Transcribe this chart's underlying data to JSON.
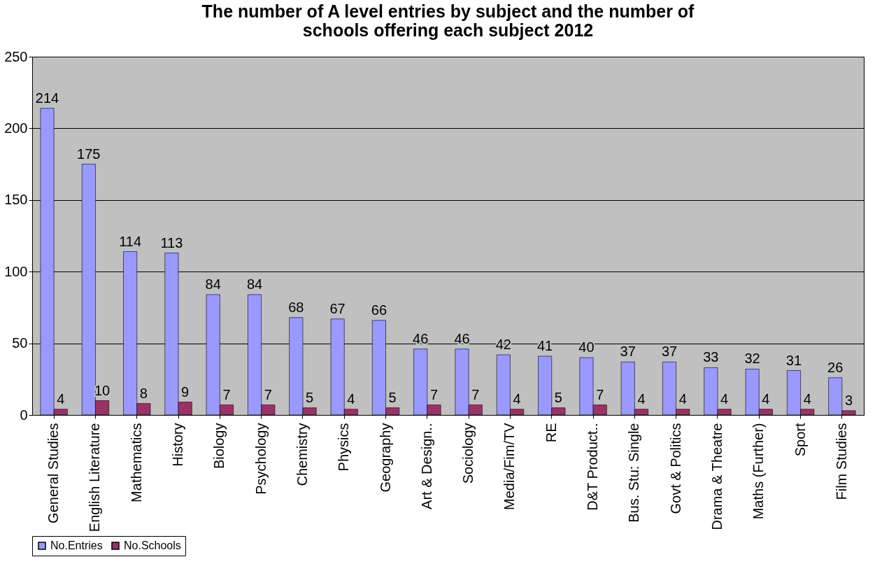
{
  "chart_data": {
    "type": "bar",
    "title": "The number of A level entries by subject and the number of schools offering each subject 2012",
    "categories": [
      "General Studies",
      "English Literature",
      "Mathematics",
      "History",
      "Biology",
      "Psychology",
      "Chemistry",
      "Physics",
      "Geography",
      "Art & Design..",
      "Sociology",
      "Media/Fim/TV",
      "RE",
      "D&T Product..",
      "Bus. Stu: Single",
      "Govt & Politics",
      "Drama & Theatre",
      "Maths (Further)",
      "Sport",
      "Film Studies"
    ],
    "series": [
      {
        "name": "No.Entries",
        "color": "#9999ff",
        "values": [
          214,
          175,
          114,
          113,
          84,
          84,
          68,
          67,
          66,
          46,
          46,
          42,
          41,
          40,
          37,
          37,
          33,
          32,
          31,
          26
        ]
      },
      {
        "name": "No.Schools",
        "color": "#993366",
        "values": [
          4,
          10,
          8,
          9,
          7,
          7,
          5,
          4,
          5,
          7,
          7,
          4,
          5,
          7,
          4,
          4,
          4,
          4,
          4,
          3
        ]
      }
    ],
    "ylim": [
      0,
      250
    ],
    "yticks": [
      0,
      50,
      100,
      150,
      200,
      250
    ],
    "grid": "y",
    "legend": "bottom",
    "data_labels": true
  }
}
